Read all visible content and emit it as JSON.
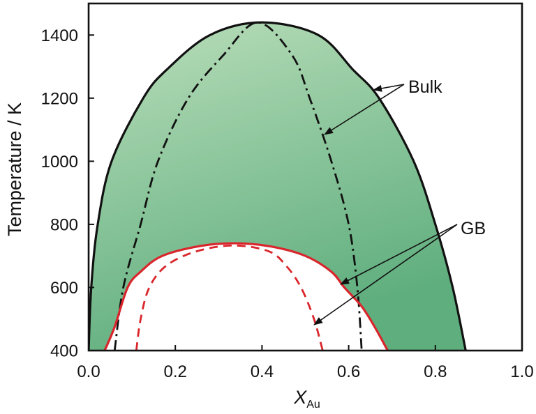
{
  "chart_data": {
    "type": "line",
    "xlabel": "X",
    "xlabel_subscript": "Au",
    "ylabel": "Temperature / K",
    "xlim": [
      0.0,
      1.0
    ],
    "ylim": [
      400,
      1500
    ],
    "xticks": [
      "0.0",
      "0.2",
      "0.4",
      "0.6",
      "0.8",
      "1.0"
    ],
    "yticks": [
      "400",
      "600",
      "800",
      "1000",
      "1200",
      "1400"
    ],
    "grid": false,
    "series": [
      {
        "color": "#111111",
        "line_style": "solid",
        "x": [
          0.0,
          0.006,
          0.021,
          0.053,
          0.126,
          0.18,
          0.28,
          0.4,
          0.53,
          0.61,
          0.67,
          0.75,
          0.8,
          0.84,
          0.87
        ],
        "y": [
          400,
          600,
          800,
          1000,
          1200,
          1290,
          1400,
          1440,
          1400,
          1290,
          1200,
          1000,
          800,
          600,
          400
        ]
      },
      {
        "color": "#111111",
        "line_style": "dashdot",
        "x": [
          0.06,
          0.08,
          0.12,
          0.16,
          0.23,
          0.31,
          0.39,
          0.47,
          0.51,
          0.56,
          0.6,
          0.62,
          0.63
        ],
        "y": [
          400,
          600,
          800,
          1000,
          1200,
          1335,
          1440,
          1335,
          1200,
          1000,
          800,
          600,
          400
        ]
      },
      {
        "color": "#d9262c",
        "line_style": "solid",
        "x": [
          0.037,
          0.06,
          0.09,
          0.12,
          0.17,
          0.26,
          0.34,
          0.42,
          0.5,
          0.56,
          0.59,
          0.63,
          0.66,
          0.69
        ],
        "y": [
          400,
          475,
          600,
          650,
          700,
          732,
          740,
          730,
          700,
          650,
          600,
          540,
          475,
          400
        ]
      },
      {
        "color": "#d9262c",
        "line_style": "dashed",
        "x": [
          0.11,
          0.12,
          0.14,
          0.18,
          0.25,
          0.335,
          0.415,
          0.455,
          0.49,
          0.52,
          0.54
        ],
        "y": [
          400,
          500,
          600,
          670,
          715,
          733,
          715,
          670,
          600,
          500,
          400
        ]
      }
    ],
    "annotations": [
      {
        "text": "Bulk"
      },
      {
        "text": "GB"
      }
    ],
    "fill": {
      "two_phase_top": "#badeba",
      "two_phase_bottom": "#5fae7e",
      "inner": "#ffffff"
    }
  }
}
